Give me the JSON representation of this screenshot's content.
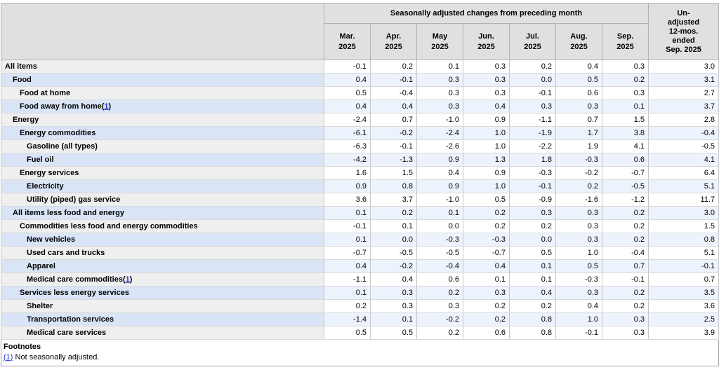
{
  "table": {
    "header": {
      "group_title": "Seasonally adjusted changes from preceding month",
      "columns": [
        {
          "month": "Mar.",
          "year": "2025"
        },
        {
          "month": "Apr.",
          "year": "2025"
        },
        {
          "month": "May",
          "year": "2025"
        },
        {
          "month": "Jun.",
          "year": "2025"
        },
        {
          "month": "Jul.",
          "year": "2025"
        },
        {
          "month": "Aug.",
          "year": "2025"
        },
        {
          "month": "Sep.",
          "year": "2025"
        }
      ],
      "unadjusted_lines": [
        "Un-",
        "adjusted",
        "12-mos.",
        "ended",
        "Sep. 2025"
      ]
    },
    "rows": [
      {
        "label": "All items",
        "level": 0,
        "values": [
          "-0.1",
          "0.2",
          "0.1",
          "0.3",
          "0.2",
          "0.4",
          "0.3",
          "3.0"
        ]
      },
      {
        "label": "Food",
        "level": 1,
        "values": [
          "0.4",
          "-0.1",
          "0.3",
          "0.3",
          "0.0",
          "0.5",
          "0.2",
          "3.1"
        ]
      },
      {
        "label": "Food at home",
        "level": 2,
        "values": [
          "0.5",
          "-0.4",
          "0.3",
          "0.3",
          "-0.1",
          "0.6",
          "0.3",
          "2.7"
        ]
      },
      {
        "label": "Food away from home",
        "level": 2,
        "footnote": "1",
        "values": [
          "0.4",
          "0.4",
          "0.3",
          "0.4",
          "0.3",
          "0.3",
          "0.1",
          "3.7"
        ]
      },
      {
        "label": "Energy",
        "level": 1,
        "values": [
          "-2.4",
          "0.7",
          "-1.0",
          "0.9",
          "-1.1",
          "0.7",
          "1.5",
          "2.8"
        ]
      },
      {
        "label": "Energy commodities",
        "level": 2,
        "values": [
          "-6.1",
          "-0.2",
          "-2.4",
          "1.0",
          "-1.9",
          "1.7",
          "3.8",
          "-0.4"
        ]
      },
      {
        "label": "Gasoline (all types)",
        "level": 3,
        "values": [
          "-6.3",
          "-0.1",
          "-2.6",
          "1.0",
          "-2.2",
          "1.9",
          "4.1",
          "-0.5"
        ]
      },
      {
        "label": "Fuel oil",
        "level": 3,
        "values": [
          "-4.2",
          "-1.3",
          "0.9",
          "1.3",
          "1.8",
          "-0.3",
          "0.6",
          "4.1"
        ]
      },
      {
        "label": "Energy services",
        "level": 2,
        "values": [
          "1.6",
          "1.5",
          "0.4",
          "0.9",
          "-0.3",
          "-0.2",
          "-0.7",
          "6.4"
        ]
      },
      {
        "label": "Electricity",
        "level": 3,
        "values": [
          "0.9",
          "0.8",
          "0.9",
          "1.0",
          "-0.1",
          "0.2",
          "-0.5",
          "5.1"
        ]
      },
      {
        "label": "Utility (piped) gas service",
        "level": 3,
        "values": [
          "3.6",
          "3.7",
          "-1.0",
          "0.5",
          "-0.9",
          "-1.6",
          "-1.2",
          "11.7"
        ]
      },
      {
        "label": "All items less food and energy",
        "level": 1,
        "values": [
          "0.1",
          "0.2",
          "0.1",
          "0.2",
          "0.3",
          "0.3",
          "0.2",
          "3.0"
        ]
      },
      {
        "label": "Commodities less food and energy commodities",
        "level": 2,
        "values": [
          "-0.1",
          "0.1",
          "0.0",
          "0.2",
          "0.2",
          "0.3",
          "0.2",
          "1.5"
        ]
      },
      {
        "label": "New vehicles",
        "level": 3,
        "values": [
          "0.1",
          "0.0",
          "-0.3",
          "-0.3",
          "0.0",
          "0.3",
          "0.2",
          "0.8"
        ]
      },
      {
        "label": "Used cars and trucks",
        "level": 3,
        "values": [
          "-0.7",
          "-0.5",
          "-0.5",
          "-0.7",
          "0.5",
          "1.0",
          "-0.4",
          "5.1"
        ]
      },
      {
        "label": "Apparel",
        "level": 3,
        "values": [
          "0.4",
          "-0.2",
          "-0.4",
          "0.4",
          "0.1",
          "0.5",
          "0.7",
          "-0.1"
        ]
      },
      {
        "label": "Medical care commodities",
        "level": 3,
        "footnote": "1",
        "values": [
          "-1.1",
          "0.4",
          "0.6",
          "0.1",
          "0.1",
          "-0.3",
          "-0.1",
          "0.7"
        ]
      },
      {
        "label": "Services less energy services",
        "level": 2,
        "values": [
          "0.1",
          "0.3",
          "0.2",
          "0.3",
          "0.4",
          "0.3",
          "0.2",
          "3.5"
        ]
      },
      {
        "label": "Shelter",
        "level": 3,
        "values": [
          "0.2",
          "0.3",
          "0.3",
          "0.2",
          "0.2",
          "0.4",
          "0.2",
          "3.6"
        ]
      },
      {
        "label": "Transportation services",
        "level": 3,
        "values": [
          "-1.4",
          "0.1",
          "-0.2",
          "0.2",
          "0.8",
          "1.0",
          "0.3",
          "2.5"
        ]
      },
      {
        "label": "Medical care services",
        "level": 3,
        "values": [
          "0.5",
          "0.5",
          "0.2",
          "0.6",
          "0.8",
          "-0.1",
          "0.3",
          "3.9"
        ]
      }
    ],
    "footnotes": {
      "heading": "Footnotes",
      "items": [
        {
          "marker": "(1)",
          "text": "Not seasonally adjusted."
        }
      ]
    }
  },
  "colors": {
    "header_bg": "#e0e0e0",
    "label_row_gray": "#efefef",
    "label_row_blue": "#d9e5f7",
    "data_row_white": "#ffffff",
    "data_row_blue": "#edf3fc",
    "link_blue": "#2438cf"
  }
}
